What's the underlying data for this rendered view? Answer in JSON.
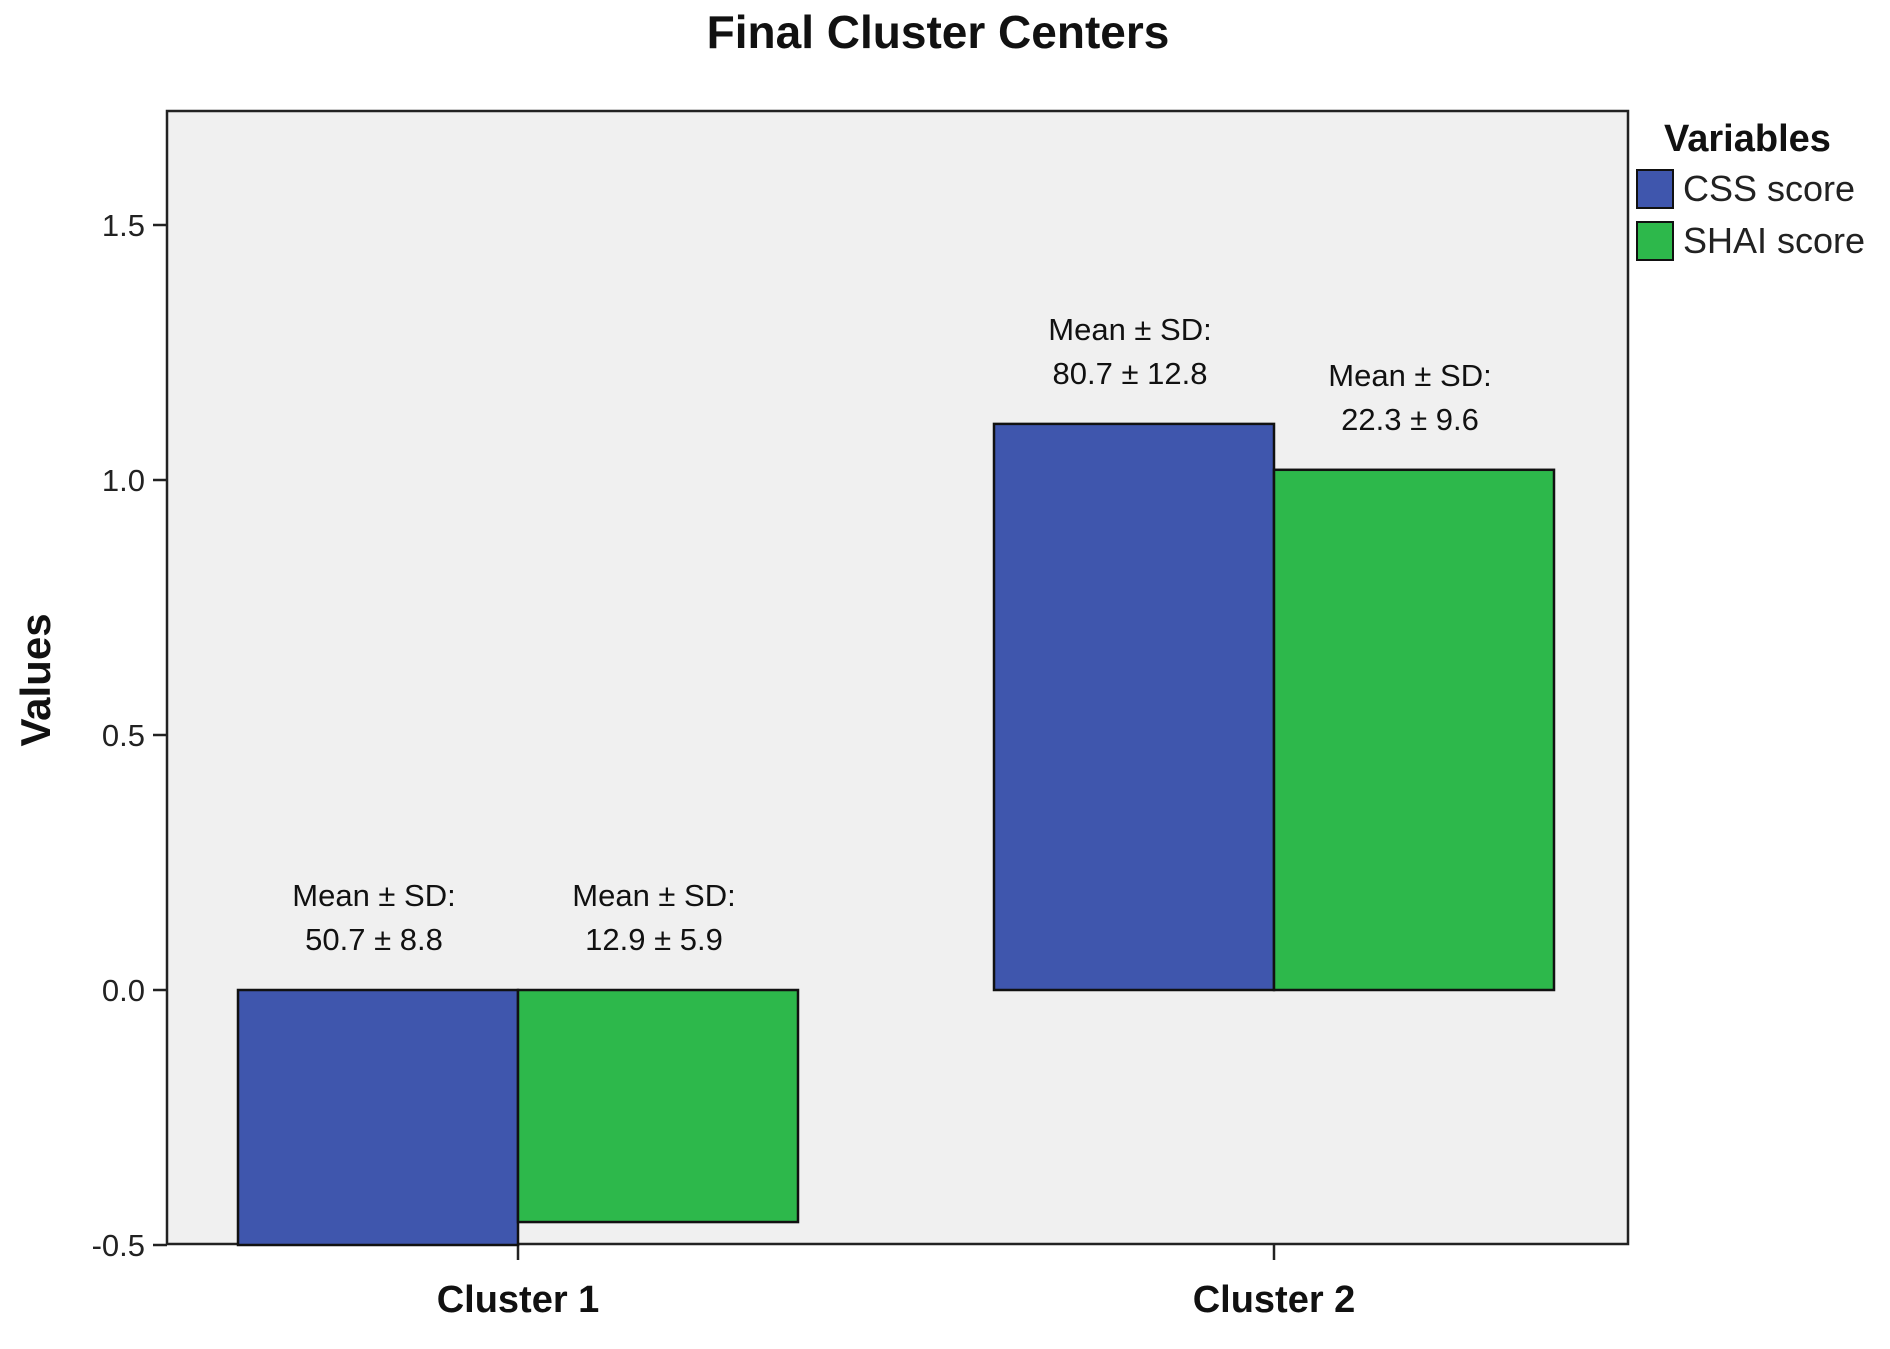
{
  "chart_data": {
    "type": "bar",
    "title": "Final Cluster Centers",
    "xlabel": "",
    "ylabel": "Values",
    "ylim": [
      -0.5,
      1.72
    ],
    "yticks": [
      -0.5,
      0.0,
      0.5,
      1.0,
      1.5
    ],
    "ytick_labels": [
      "-0.5",
      "0.0",
      "0.5",
      "1.0",
      "1.5"
    ],
    "categories": [
      "Cluster 1",
      "Cluster 2"
    ],
    "legend": {
      "title": "Variables",
      "position": "right"
    },
    "series": [
      {
        "name": "CSS score",
        "color": "#3f56ad",
        "values": [
          -0.5,
          1.11
        ],
        "labels": [
          [
            "Mean ± SD:",
            "50.7 ± 8.8"
          ],
          [
            "Mean ± SD:",
            "80.7 ± 12.8"
          ]
        ]
      },
      {
        "name": "SHAI score",
        "color": "#2db84b",
        "values": [
          -0.455,
          1.02
        ],
        "labels": [
          [
            "Mean ± SD:",
            "12.9 ± 5.9"
          ],
          [
            "Mean ± SD:",
            "22.3 ± 9.6"
          ]
        ]
      }
    ],
    "plot_background": "#f0f0f0",
    "grid": false
  }
}
